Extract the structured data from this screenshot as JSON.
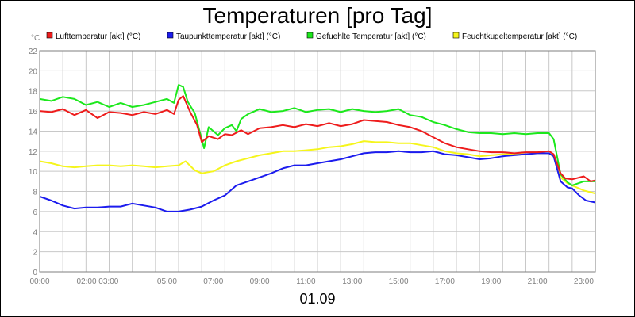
{
  "chart_data": {
    "type": "line",
    "title": "Temperaturen [pro Tag]",
    "unit": "°C",
    "date": "01.09",
    "ylim": [
      0,
      22
    ],
    "y_ticks": [
      0,
      2,
      4,
      6,
      8,
      10,
      12,
      14,
      16,
      18,
      20,
      22
    ],
    "x_range_hours": [
      0,
      24
    ],
    "x_tick_labels": [
      "00:00",
      "02:00 03:00",
      "05:00",
      "07:00",
      "09:00",
      "11:00",
      "13:00",
      "15:00",
      "17:00",
      "19:00",
      "21:00",
      "23:00"
    ],
    "grid": true,
    "legend_position": "top",
    "series": [
      {
        "name": "Lufttemperatur [akt] (°C)",
        "color": "#ee1c1c",
        "points": [
          [
            0,
            16.0
          ],
          [
            0.5,
            15.9
          ],
          [
            1,
            16.2
          ],
          [
            1.5,
            15.6
          ],
          [
            2,
            16.1
          ],
          [
            2.5,
            15.3
          ],
          [
            3,
            15.9
          ],
          [
            3.5,
            15.8
          ],
          [
            4,
            15.6
          ],
          [
            4.5,
            15.9
          ],
          [
            5,
            15.7
          ],
          [
            5.5,
            16.1
          ],
          [
            5.8,
            15.7
          ],
          [
            6.0,
            17.1
          ],
          [
            6.2,
            17.5
          ],
          [
            6.5,
            15.9
          ],
          [
            6.8,
            14.6
          ],
          [
            7.0,
            12.9
          ],
          [
            7.3,
            13.5
          ],
          [
            7.7,
            13.2
          ],
          [
            8.0,
            13.7
          ],
          [
            8.3,
            13.6
          ],
          [
            8.7,
            14.1
          ],
          [
            9.0,
            13.7
          ],
          [
            9.5,
            14.3
          ],
          [
            10,
            14.4
          ],
          [
            10.5,
            14.6
          ],
          [
            11,
            14.4
          ],
          [
            11.5,
            14.7
          ],
          [
            12,
            14.5
          ],
          [
            12.5,
            14.8
          ],
          [
            13,
            14.5
          ],
          [
            13.5,
            14.7
          ],
          [
            14,
            15.1
          ],
          [
            14.5,
            15.0
          ],
          [
            15,
            14.9
          ],
          [
            15.5,
            14.6
          ],
          [
            16,
            14.4
          ],
          [
            16.5,
            14.0
          ],
          [
            17,
            13.4
          ],
          [
            17.5,
            12.8
          ],
          [
            18,
            12.4
          ],
          [
            18.5,
            12.2
          ],
          [
            19,
            12.0
          ],
          [
            19.5,
            11.9
          ],
          [
            20,
            11.9
          ],
          [
            20.5,
            11.8
          ],
          [
            21,
            11.9
          ],
          [
            21.5,
            11.9
          ],
          [
            22,
            12.0
          ],
          [
            22.2,
            11.7
          ],
          [
            22.5,
            9.8
          ],
          [
            22.7,
            9.3
          ],
          [
            23,
            9.2
          ],
          [
            23.5,
            9.5
          ],
          [
            23.8,
            9.0
          ],
          [
            24,
            9.1
          ]
        ]
      },
      {
        "name": "Taupunkttemperatur [akt] (°C)",
        "color": "#1c1cee",
        "points": [
          [
            0,
            7.5
          ],
          [
            0.5,
            7.1
          ],
          [
            1,
            6.6
          ],
          [
            1.5,
            6.3
          ],
          [
            2,
            6.4
          ],
          [
            2.5,
            6.4
          ],
          [
            3,
            6.5
          ],
          [
            3.5,
            6.5
          ],
          [
            4,
            6.8
          ],
          [
            4.5,
            6.6
          ],
          [
            5,
            6.4
          ],
          [
            5.5,
            6.0
          ],
          [
            6,
            6.0
          ],
          [
            6.5,
            6.2
          ],
          [
            7,
            6.5
          ],
          [
            7.5,
            7.1
          ],
          [
            8,
            7.6
          ],
          [
            8.5,
            8.6
          ],
          [
            9,
            9.0
          ],
          [
            9.5,
            9.4
          ],
          [
            10,
            9.8
          ],
          [
            10.5,
            10.3
          ],
          [
            11,
            10.6
          ],
          [
            11.5,
            10.6
          ],
          [
            12,
            10.8
          ],
          [
            12.5,
            11.0
          ],
          [
            13,
            11.2
          ],
          [
            13.5,
            11.5
          ],
          [
            14,
            11.8
          ],
          [
            14.5,
            11.9
          ],
          [
            15,
            11.9
          ],
          [
            15.5,
            12.0
          ],
          [
            16,
            11.9
          ],
          [
            16.5,
            11.9
          ],
          [
            17,
            12.0
          ],
          [
            17.5,
            11.7
          ],
          [
            18,
            11.6
          ],
          [
            18.5,
            11.4
          ],
          [
            19,
            11.2
          ],
          [
            19.5,
            11.3
          ],
          [
            20,
            11.5
          ],
          [
            20.5,
            11.6
          ],
          [
            21,
            11.7
          ],
          [
            21.5,
            11.8
          ],
          [
            22,
            11.8
          ],
          [
            22.2,
            11.5
          ],
          [
            22.5,
            9.0
          ],
          [
            22.8,
            8.4
          ],
          [
            23,
            8.3
          ],
          [
            23.3,
            7.6
          ],
          [
            23.6,
            7.1
          ],
          [
            24,
            6.9
          ]
        ]
      },
      {
        "name": "Gefuehlte Temperatur [akt] (°C)",
        "color": "#1ce81c",
        "points": [
          [
            0,
            17.2
          ],
          [
            0.5,
            17.0
          ],
          [
            1,
            17.4
          ],
          [
            1.5,
            17.2
          ],
          [
            2,
            16.6
          ],
          [
            2.5,
            16.9
          ],
          [
            3,
            16.4
          ],
          [
            3.5,
            16.8
          ],
          [
            4,
            16.4
          ],
          [
            4.5,
            16.6
          ],
          [
            5,
            16.9
          ],
          [
            5.5,
            17.2
          ],
          [
            5.8,
            16.8
          ],
          [
            6.0,
            18.6
          ],
          [
            6.2,
            18.4
          ],
          [
            6.4,
            16.9
          ],
          [
            6.7,
            15.8
          ],
          [
            7.0,
            13.2
          ],
          [
            7.1,
            12.3
          ],
          [
            7.3,
            14.4
          ],
          [
            7.7,
            13.6
          ],
          [
            8,
            14.3
          ],
          [
            8.3,
            14.6
          ],
          [
            8.5,
            14.0
          ],
          [
            8.7,
            15.2
          ],
          [
            9,
            15.7
          ],
          [
            9.5,
            16.2
          ],
          [
            10,
            15.9
          ],
          [
            10.5,
            16.0
          ],
          [
            11,
            16.3
          ],
          [
            11.5,
            15.9
          ],
          [
            12,
            16.1
          ],
          [
            12.5,
            16.2
          ],
          [
            13,
            15.9
          ],
          [
            13.5,
            16.2
          ],
          [
            14,
            16.0
          ],
          [
            14.5,
            15.9
          ],
          [
            15,
            16.0
          ],
          [
            15.5,
            16.2
          ],
          [
            16,
            15.6
          ],
          [
            16.5,
            15.4
          ],
          [
            17,
            14.9
          ],
          [
            17.5,
            14.6
          ],
          [
            18,
            14.2
          ],
          [
            18.5,
            13.9
          ],
          [
            19,
            13.8
          ],
          [
            19.5,
            13.8
          ],
          [
            20,
            13.7
          ],
          [
            20.5,
            13.8
          ],
          [
            21,
            13.7
          ],
          [
            21.5,
            13.8
          ],
          [
            22,
            13.8
          ],
          [
            22.2,
            13.2
          ],
          [
            22.5,
            9.7
          ],
          [
            22.8,
            8.9
          ],
          [
            23,
            8.6
          ],
          [
            23.5,
            9.0
          ],
          [
            24,
            9.0
          ]
        ]
      },
      {
        "name": "Feuchtkugeltemperatur [akt] (°C)",
        "color": "#f5f51c",
        "points": [
          [
            0,
            11.0
          ],
          [
            0.5,
            10.8
          ],
          [
            1,
            10.5
          ],
          [
            1.5,
            10.4
          ],
          [
            2,
            10.5
          ],
          [
            2.5,
            10.6
          ],
          [
            3,
            10.6
          ],
          [
            3.5,
            10.5
          ],
          [
            4,
            10.6
          ],
          [
            4.5,
            10.5
          ],
          [
            5,
            10.4
          ],
          [
            5.5,
            10.5
          ],
          [
            6,
            10.6
          ],
          [
            6.3,
            11.0
          ],
          [
            6.7,
            10.1
          ],
          [
            7,
            9.8
          ],
          [
            7.5,
            10.0
          ],
          [
            8,
            10.6
          ],
          [
            8.5,
            11.0
          ],
          [
            9,
            11.3
          ],
          [
            9.5,
            11.6
          ],
          [
            10,
            11.8
          ],
          [
            10.5,
            12.0
          ],
          [
            11,
            12.0
          ],
          [
            11.5,
            12.1
          ],
          [
            12,
            12.2
          ],
          [
            12.5,
            12.4
          ],
          [
            13,
            12.5
          ],
          [
            13.5,
            12.7
          ],
          [
            14,
            13.0
          ],
          [
            14.5,
            12.9
          ],
          [
            15,
            12.9
          ],
          [
            15.5,
            12.8
          ],
          [
            16,
            12.8
          ],
          [
            16.5,
            12.6
          ],
          [
            17,
            12.4
          ],
          [
            17.5,
            12.0
          ],
          [
            18,
            11.8
          ],
          [
            18.5,
            11.7
          ],
          [
            19,
            11.5
          ],
          [
            19.5,
            11.6
          ],
          [
            20,
            11.7
          ],
          [
            20.5,
            11.7
          ],
          [
            21,
            11.7
          ],
          [
            21.5,
            11.8
          ],
          [
            22,
            11.8
          ],
          [
            22.2,
            11.5
          ],
          [
            22.5,
            9.4
          ],
          [
            22.8,
            8.8
          ],
          [
            23,
            8.6
          ],
          [
            23.5,
            8.1
          ],
          [
            24,
            7.8
          ]
        ]
      }
    ]
  }
}
